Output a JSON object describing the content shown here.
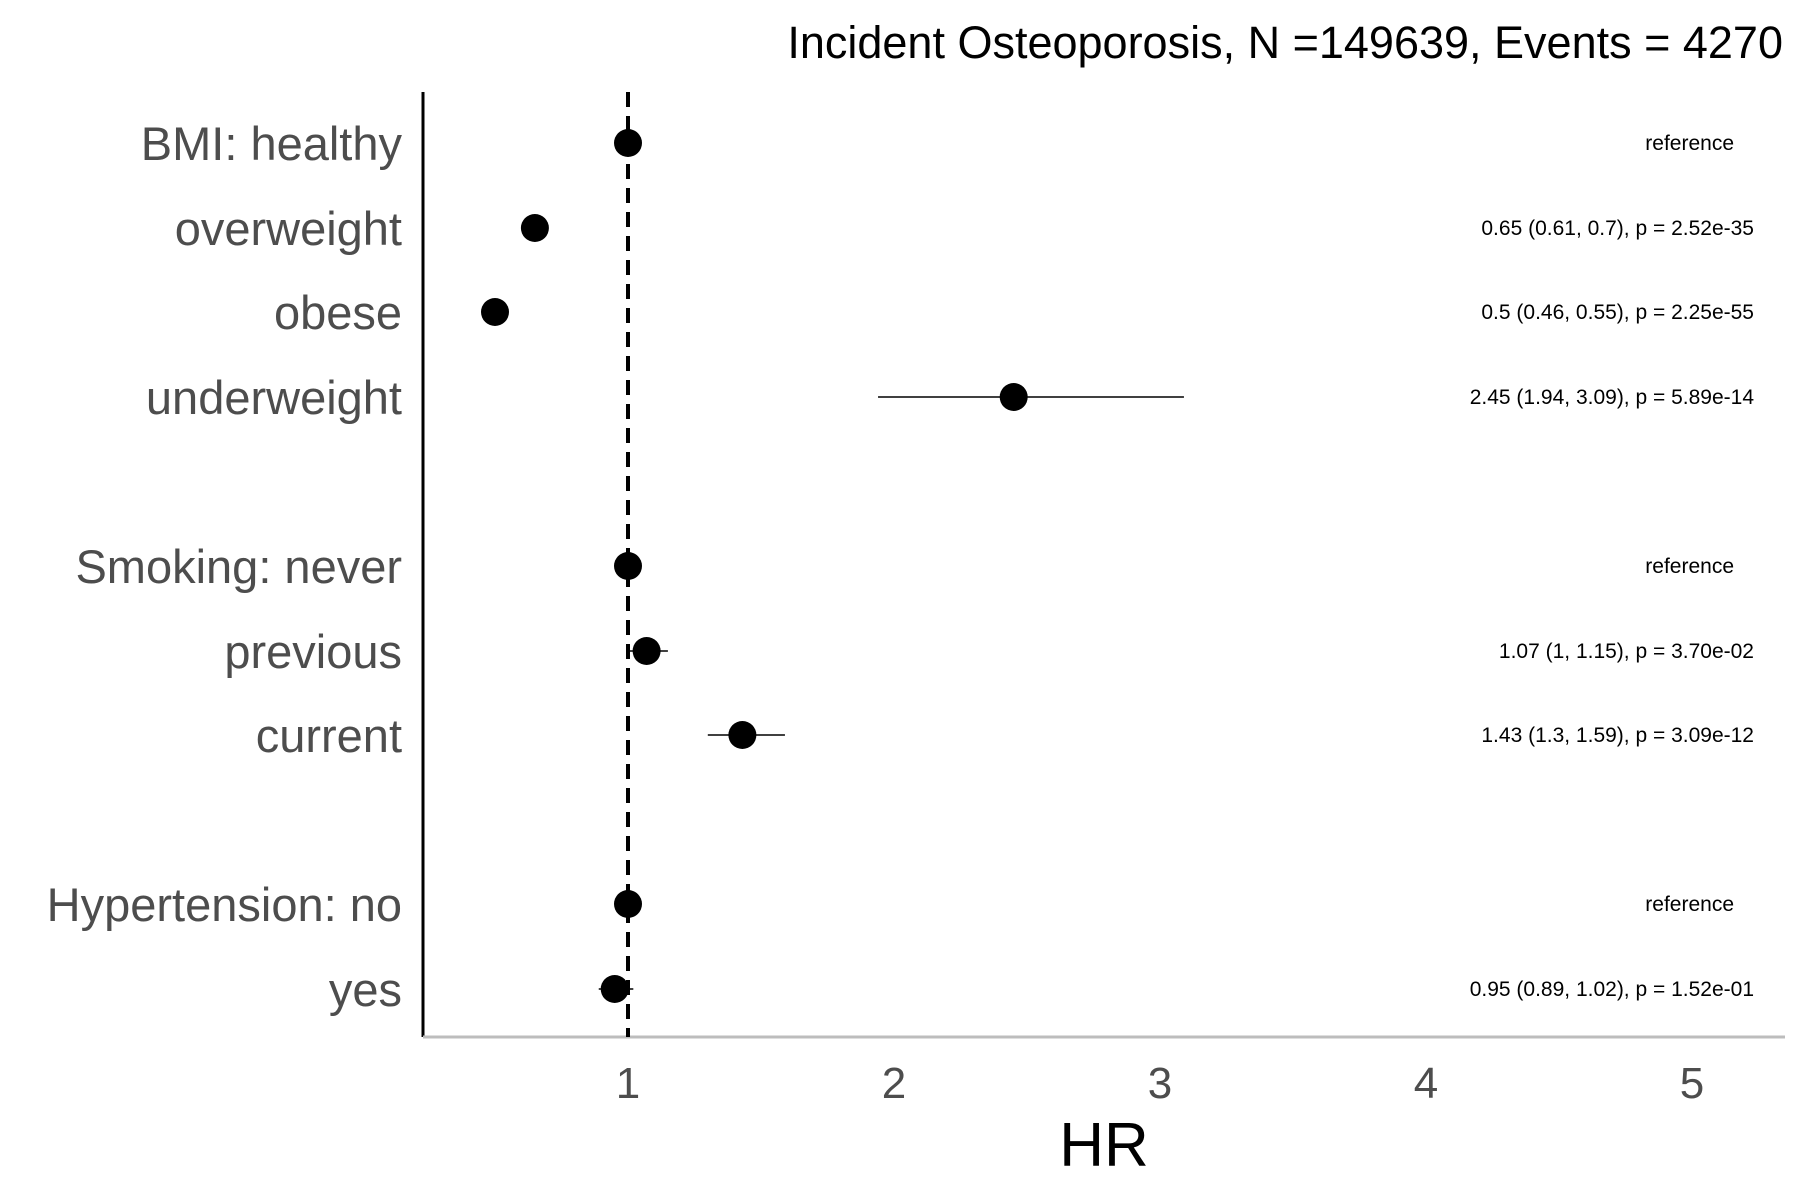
{
  "chart_data": {
    "type": "forest",
    "title": "Incident Osteoporosis, N =149639, Events = 4270",
    "xlabel": "HR",
    "xlim": [
      0.24,
      5.35
    ],
    "xticks": [
      1,
      2,
      3,
      4,
      5
    ],
    "reference_line": 1,
    "grid": false,
    "rows": [
      {
        "label": "BMI: healthy",
        "hr": 1.0,
        "lower": null,
        "upper": null,
        "annotation": "reference"
      },
      {
        "label": "overweight",
        "hr": 0.65,
        "lower": 0.61,
        "upper": 0.7,
        "annotation": "0.65 (0.61, 0.7), p = 2.52e-35"
      },
      {
        "label": "obese",
        "hr": 0.5,
        "lower": 0.46,
        "upper": 0.55,
        "annotation": "0.5 (0.46, 0.55), p = 2.25e-55"
      },
      {
        "label": "underweight",
        "hr": 2.45,
        "lower": 1.94,
        "upper": 3.09,
        "annotation": "2.45 (1.94, 3.09), p = 5.89e-14"
      },
      {
        "label": "Smoking: never",
        "hr": 1.0,
        "lower": null,
        "upper": null,
        "annotation": "reference"
      },
      {
        "label": "previous",
        "hr": 1.07,
        "lower": 1.0,
        "upper": 1.15,
        "annotation": "1.07 (1, 1.15), p = 3.70e-02"
      },
      {
        "label": "current",
        "hr": 1.43,
        "lower": 1.3,
        "upper": 1.59,
        "annotation": "1.43 (1.3, 1.59), p = 3.09e-12"
      },
      {
        "label": "Hypertension: no",
        "hr": 1.0,
        "lower": null,
        "upper": null,
        "annotation": "reference"
      },
      {
        "label": "yes",
        "hr": 0.95,
        "lower": 0.89,
        "upper": 1.02,
        "annotation": "0.95 (0.89, 1.02), p = 1.52e-01"
      }
    ]
  }
}
